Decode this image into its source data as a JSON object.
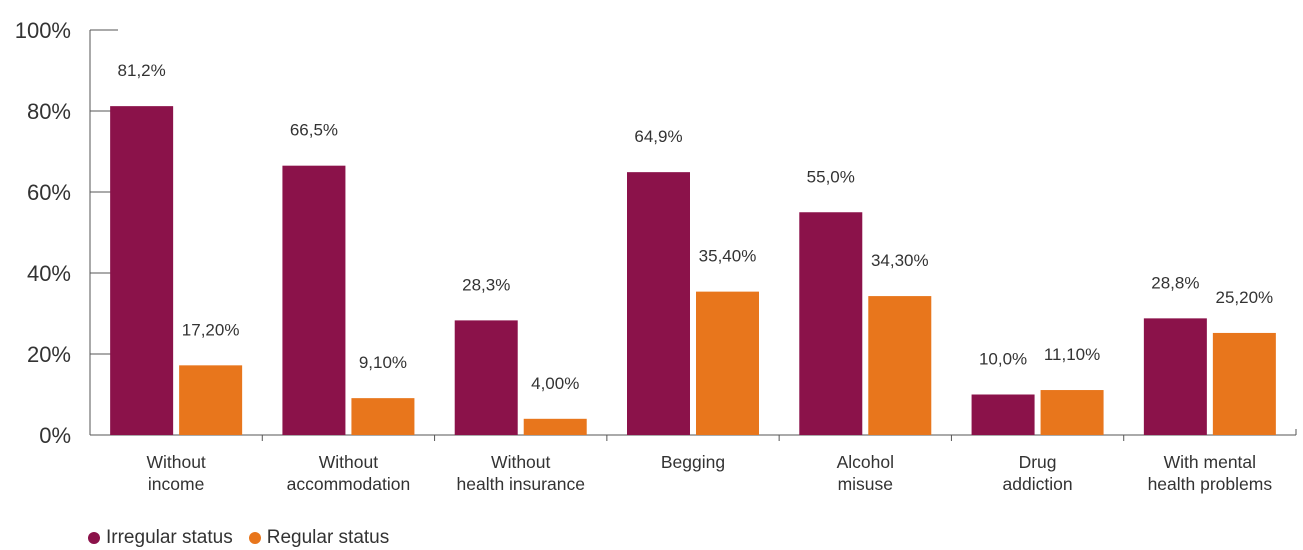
{
  "chart_data": {
    "type": "bar",
    "categories": [
      [
        "Without",
        "income"
      ],
      [
        "Without",
        "accommodation"
      ],
      [
        "Without",
        "health insurance"
      ],
      [
        "Begging"
      ],
      [
        "Alcohol",
        "misuse"
      ],
      [
        "Drug",
        "addiction"
      ],
      [
        "With mental",
        "health problems"
      ]
    ],
    "series": [
      {
        "name": "Irregular status",
        "color": "#8B124A",
        "values": [
          81.2,
          66.5,
          28.3,
          64.9,
          55.0,
          10.0,
          28.8
        ],
        "labels": [
          "81,2%",
          "66,5%",
          "28,3%",
          "64,9%",
          "55,0%",
          "10,0%",
          "28,8%"
        ]
      },
      {
        "name": "Regular status",
        "color": "#E8761C",
        "values": [
          17.2,
          9.1,
          4.0,
          35.4,
          34.3,
          11.1,
          25.2
        ],
        "labels": [
          "17,20%",
          "9,10%",
          "4,00%",
          "35,40%",
          "34,30%",
          "11,10%",
          "25,20%"
        ]
      }
    ],
    "ylim": [
      0,
      100
    ],
    "yticks": [
      0,
      20,
      40,
      60,
      80,
      100
    ],
    "ytick_labels": [
      "0%",
      "20%",
      "40%",
      "60%",
      "80%",
      "100%"
    ],
    "title": "",
    "xlabel": "",
    "ylabel": "",
    "grid": false,
    "legend_position": "bottom-left"
  }
}
